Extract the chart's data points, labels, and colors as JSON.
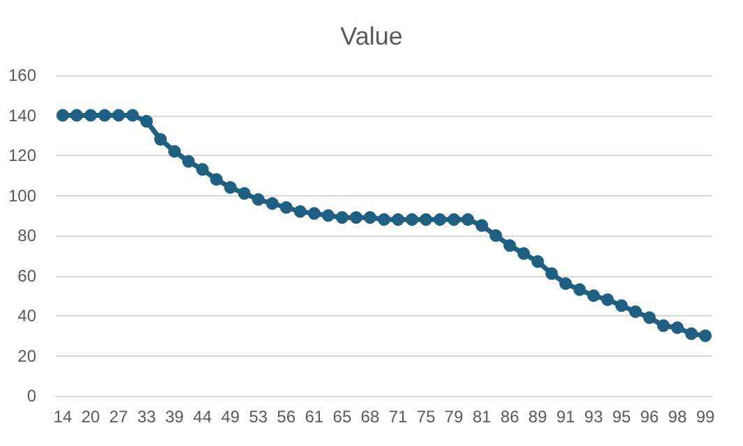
{
  "chart_data": {
    "type": "line",
    "title": "Value",
    "categories": [
      "14",
      null,
      "20",
      null,
      "27",
      null,
      "33",
      null,
      "39",
      null,
      "44",
      null,
      "49",
      null,
      "53",
      null,
      "56",
      null,
      "61",
      null,
      "65",
      null,
      "68",
      null,
      "71",
      null,
      "75",
      null,
      "79",
      null,
      "81",
      null,
      "86",
      null,
      "89",
      null,
      "91",
      null,
      "93",
      null,
      "95",
      null,
      "96",
      null,
      "98",
      null,
      "99"
    ],
    "series": [
      {
        "color": "#1f5f82",
        "values": [
          140,
          140,
          140,
          140,
          140,
          140,
          137,
          128,
          122,
          117,
          113,
          108,
          104,
          101,
          98,
          96,
          94,
          92,
          91,
          90,
          89,
          89,
          89,
          88,
          88,
          88,
          88,
          88,
          88,
          88,
          85,
          80,
          75,
          71,
          67,
          61,
          56,
          53,
          50,
          48,
          45,
          42,
          39,
          35,
          34,
          31,
          30
        ]
      }
    ],
    "ylim": [
      0,
      160
    ],
    "yticks": [
      0,
      20,
      40,
      60,
      80,
      100,
      120,
      140,
      160
    ],
    "grid": "y",
    "marker": "circle",
    "line_style": "solid"
  }
}
